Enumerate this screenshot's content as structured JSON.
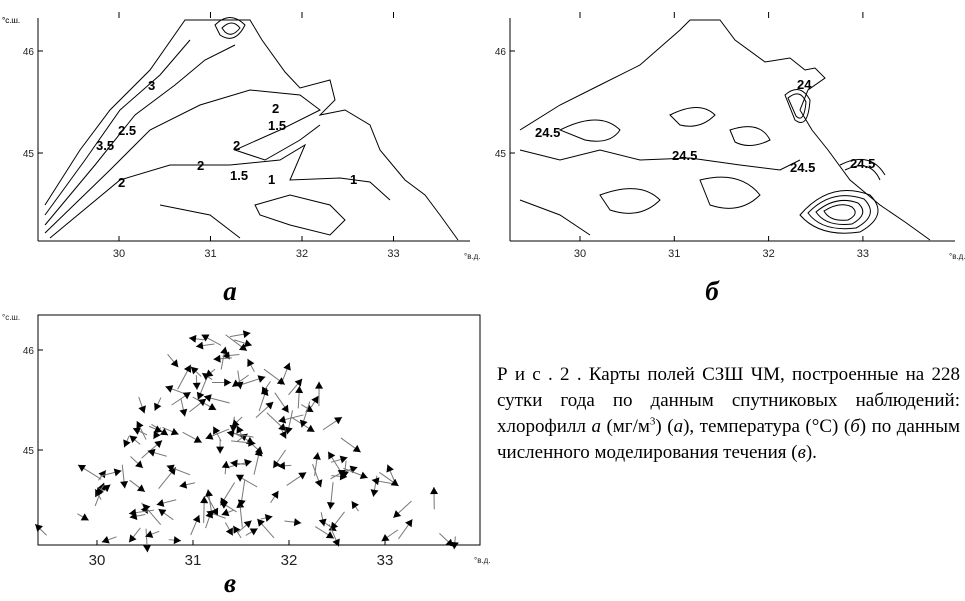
{
  "panels": [
    {
      "label": "а",
      "lat_unit": "°с.ш.",
      "lon_unit": "°в.д.",
      "yticks": [
        46,
        45
      ],
      "xticks": [
        30,
        31,
        32,
        33
      ],
      "contour_labels": [
        "3",
        "3.5",
        "2.5",
        "2",
        "1.5",
        "2",
        "2",
        "1.5",
        "1",
        "1",
        "2"
      ]
    },
    {
      "label": "б",
      "lat_unit": "°с.ш.",
      "lon_unit": "°в.д.",
      "yticks": [
        46,
        45
      ],
      "xticks": [
        30,
        31,
        32,
        33
      ],
      "contour_labels": [
        "24.5",
        "24.5",
        "24",
        "24.5",
        "24.5"
      ]
    },
    {
      "label": "в",
      "lat_unit": "°с.ш.",
      "lon_unit": "°в.д.",
      "yticks": [
        46,
        45
      ],
      "xticks": [
        30,
        31,
        32,
        33
      ]
    }
  ],
  "caption": [
    "Р и с . 2 . Карты полей СЗШ ЧМ, построенные на 228 сутки года по данным спутниковых наблюдений: хлорофилл ",
    "а",
    " (мг/м",
    "3",
    ") (",
    "а",
    "), температура (°С) (",
    "б",
    ") по данным численного моделирования течения (",
    "в",
    ")."
  ]
}
